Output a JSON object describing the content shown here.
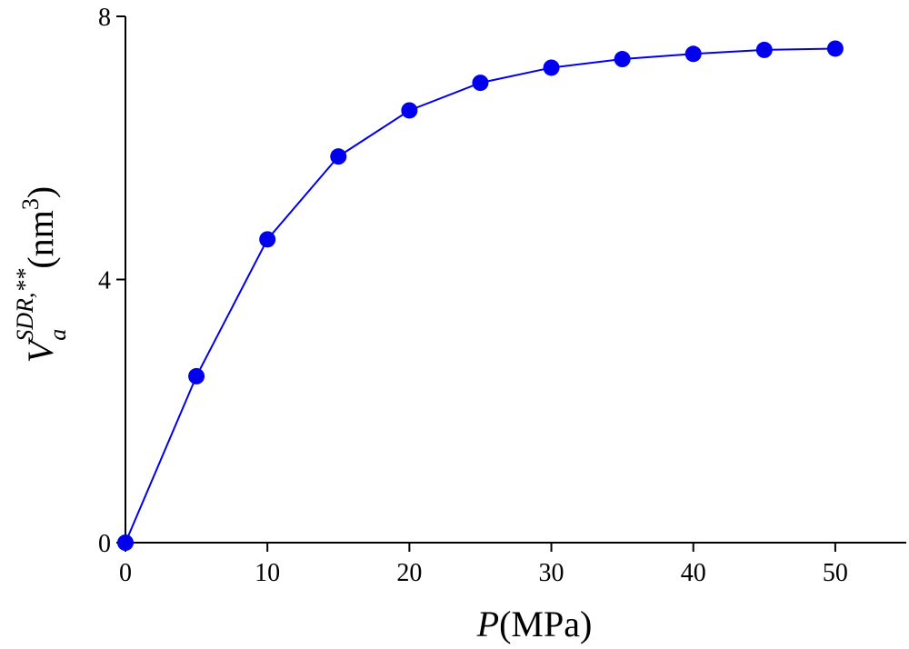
{
  "chart_data": {
    "type": "line",
    "x_label": {
      "symbol": "P",
      "unit": "(MPa)"
    },
    "y_label": {
      "symbol": "V",
      "subscript": "a",
      "superscript": "SDR,**",
      "unit": "(nm",
      "unit_power": "3",
      "unit_close": ")"
    },
    "x": [
      0,
      5,
      10,
      15,
      20,
      25,
      30,
      35,
      40,
      45,
      50
    ],
    "series": [
      {
        "color": "#0000ee",
        "values": [
          0,
          2.53,
          4.61,
          5.87,
          6.57,
          6.99,
          7.22,
          7.35,
          7.43,
          7.49,
          7.51
        ]
      }
    ],
    "xlim": [
      0,
      55
    ],
    "ylim": [
      0,
      8
    ],
    "xticks": [
      0,
      10,
      20,
      30,
      40,
      50
    ],
    "yticks": [
      0,
      4,
      8
    ],
    "markers": true
  }
}
